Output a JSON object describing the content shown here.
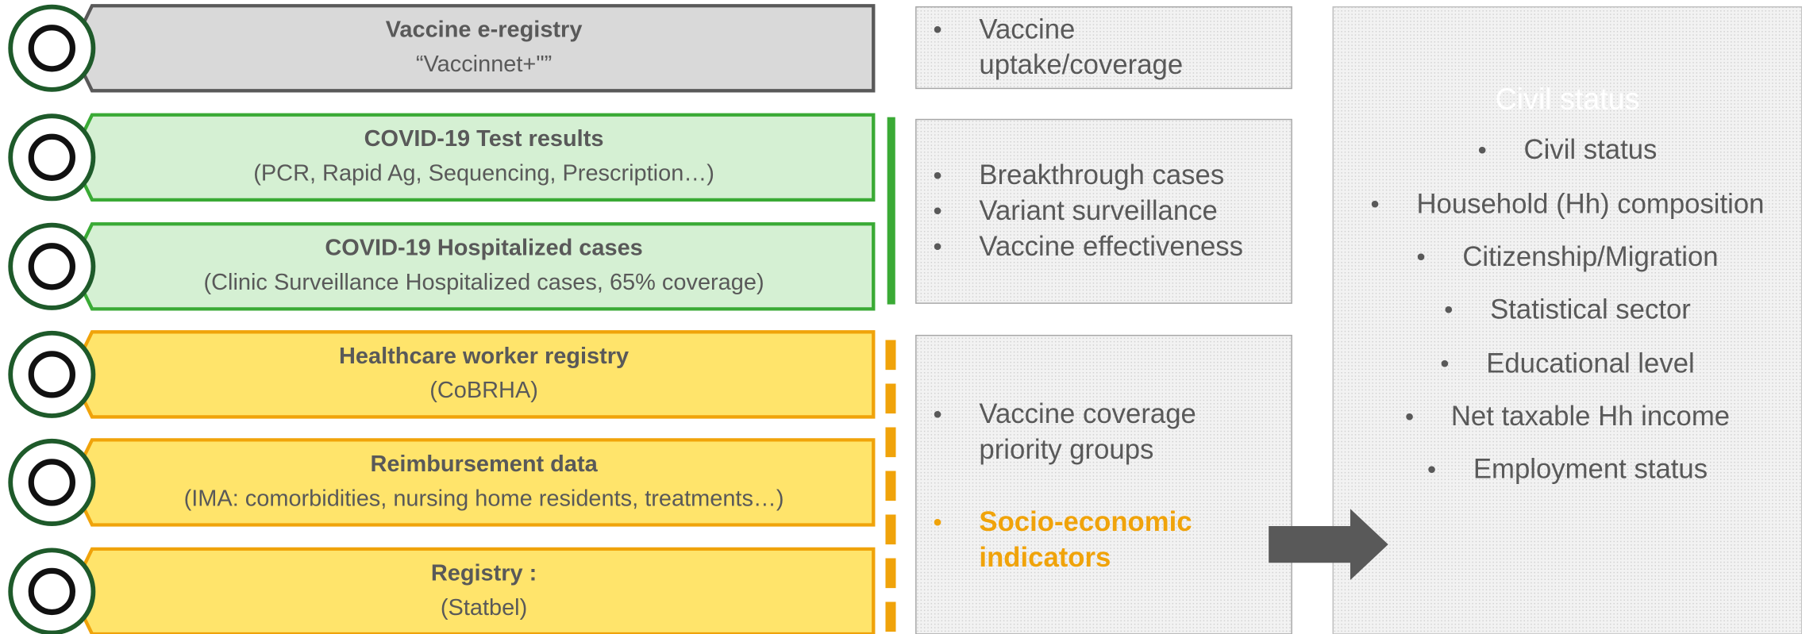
{
  "sources": [
    {
      "title": "Vaccine e-registry",
      "subtitle": "“Vaccinnet+\"”"
    },
    {
      "title": "COVID-19 Test results",
      "subtitle": "(PCR, Rapid Ag, Sequencing, Prescription…)"
    },
    {
      "title": "COVID-19 Hospitalized cases",
      "subtitle": "(Clinic Surveillance Hospitalized cases, 65% coverage)"
    },
    {
      "title": "Healthcare worker registry",
      "subtitle": "(CoBRHA)"
    },
    {
      "title": "Reimbursement data",
      "subtitle": "(IMA: comorbidities, nursing home residents, treatments…)"
    },
    {
      "title": "Registry :",
      "subtitle": "(Statbel)"
    }
  ],
  "outcomes": [
    {
      "items": [
        {
          "lines": [
            "Vaccine",
            "uptake/coverage"
          ]
        }
      ]
    },
    {
      "items": [
        {
          "lines": [
            "Breakthrough cases"
          ]
        },
        {
          "lines": [
            "Variant surveillance"
          ]
        },
        {
          "lines": [
            "Vaccine effectiveness"
          ]
        }
      ]
    },
    {
      "items": [
        {
          "lines": [
            "Vaccine coverage",
            "priority groups"
          ]
        },
        {
          "lines": [
            "Socio-economic",
            "indicators"
          ]
        }
      ]
    }
  ],
  "civil_panel": {
    "title": "Civil status",
    "items": [
      "Civil status",
      "Household (Hh) composition",
      "Citizenship/Migration",
      "Statistical sector",
      "Educational level",
      "Net taxable Hh income",
      "Employment status"
    ]
  }
}
